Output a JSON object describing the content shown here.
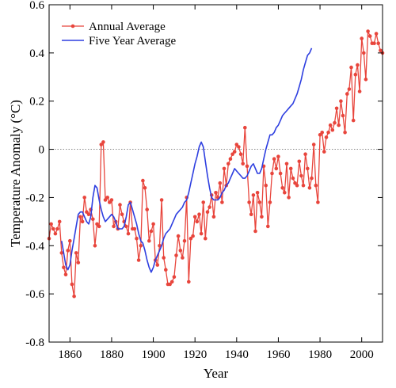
{
  "chart_data": {
    "type": "line",
    "xlabel": "Year",
    "ylabel": "Temperature Anomaly (°C)",
    "xlim": [
      1850,
      2010
    ],
    "ylim": [
      -0.8,
      0.6
    ],
    "x_ticks": [
      1860,
      1880,
      1900,
      1920,
      1940,
      1960,
      1980,
      2000
    ],
    "y_ticks": [
      -0.8,
      -0.6,
      -0.4,
      -0.2,
      0,
      0.2,
      0.4,
      0.6
    ],
    "y_tick_labels": [
      "-0.8",
      "-0.6",
      "-0.4",
      "-0.2",
      "0",
      "0.2",
      "0.4",
      "0.6"
    ],
    "reference_line": {
      "y": 0,
      "style": "dotted"
    },
    "legend_position": "top-left",
    "series": [
      {
        "name": "Annual Average",
        "color": "#e8453c",
        "marker": "circle",
        "x_start": 1850,
        "values": [
          -0.37,
          -0.31,
          -0.33,
          -0.35,
          -0.33,
          -0.3,
          -0.43,
          -0.49,
          -0.52,
          -0.42,
          -0.38,
          -0.56,
          -0.61,
          -0.43,
          -0.47,
          -0.28,
          -0.3,
          -0.2,
          -0.26,
          -0.27,
          -0.25,
          -0.29,
          -0.4,
          -0.31,
          -0.32,
          0.02,
          0.03,
          -0.21,
          -0.2,
          -0.22,
          -0.21,
          -0.32,
          -0.3,
          -0.33,
          -0.23,
          -0.27,
          -0.3,
          -0.32,
          -0.35,
          -0.22,
          -0.33,
          -0.33,
          -0.37,
          -0.46,
          -0.4,
          -0.13,
          -0.16,
          -0.25,
          -0.38,
          -0.34,
          -0.31,
          -0.46,
          -0.48,
          -0.4,
          -0.21,
          -0.45,
          -0.5,
          -0.56,
          -0.56,
          -0.55,
          -0.53,
          -0.44,
          -0.36,
          -0.42,
          -0.45,
          -0.38,
          -0.2,
          -0.55,
          -0.37,
          -0.36,
          -0.28,
          -0.3,
          -0.27,
          -0.35,
          -0.22,
          -0.37,
          -0.26,
          -0.24,
          -0.19,
          -0.28,
          -0.18,
          -0.2,
          -0.14,
          -0.22,
          -0.08,
          -0.15,
          -0.06,
          -0.04,
          -0.02,
          -0.01,
          0.02,
          0.01,
          -0.02,
          -0.06,
          0.09,
          -0.07,
          -0.22,
          -0.27,
          -0.19,
          -0.34,
          -0.18,
          -0.22,
          -0.28,
          -0.07,
          -0.15,
          -0.32,
          -0.22,
          -0.1,
          -0.04,
          -0.08,
          -0.03,
          -0.1,
          -0.16,
          -0.18,
          -0.06,
          -0.2,
          -0.08,
          -0.12,
          -0.14,
          -0.15,
          -0.05,
          -0.11,
          -0.15,
          -0.02,
          -0.08,
          -0.16,
          -0.12,
          0.02,
          -0.15,
          -0.22,
          0.06,
          0.07,
          -0.01,
          0.05,
          0.07,
          0.1,
          0.08,
          0.11,
          0.17,
          0.1,
          0.2,
          0.14,
          0.07,
          0.23,
          0.25,
          0.34,
          0.12,
          0.31,
          0.35,
          0.24,
          0.46,
          0.4,
          0.29,
          0.49,
          0.47,
          0.44,
          0.44,
          0.48,
          0.44,
          0.41,
          0.4
        ]
      },
      {
        "name": "Five Year Average",
        "color": "#2e3fe0",
        "x_start": 1856,
        "values": [
          -0.38,
          -0.43,
          -0.48,
          -0.5,
          -0.48,
          -0.42,
          -0.37,
          -0.32,
          -0.27,
          -0.26,
          -0.26,
          -0.28,
          -0.3,
          -0.31,
          -0.28,
          -0.2,
          -0.15,
          -0.16,
          -0.21,
          -0.25,
          -0.28,
          -0.3,
          -0.29,
          -0.28,
          -0.27,
          -0.28,
          -0.3,
          -0.33,
          -0.33,
          -0.33,
          -0.32,
          -0.28,
          -0.23,
          -0.22,
          -0.25,
          -0.28,
          -0.31,
          -0.35,
          -0.38,
          -0.39,
          -0.42,
          -0.46,
          -0.49,
          -0.51,
          -0.49,
          -0.46,
          -0.44,
          -0.42,
          -0.4,
          -0.37,
          -0.35,
          -0.34,
          -0.33,
          -0.31,
          -0.29,
          -0.27,
          -0.26,
          -0.25,
          -0.24,
          -0.22,
          -0.21,
          -0.18,
          -0.14,
          -0.1,
          -0.06,
          -0.03,
          0.01,
          0.03,
          0.01,
          -0.05,
          -0.11,
          -0.16,
          -0.2,
          -0.21,
          -0.21,
          -0.21,
          -0.2,
          -0.18,
          -0.17,
          -0.15,
          -0.14,
          -0.12,
          -0.1,
          -0.08,
          -0.09,
          -0.1,
          -0.11,
          -0.12,
          -0.12,
          -0.11,
          -0.09,
          -0.07,
          -0.06,
          -0.08,
          -0.1,
          -0.1,
          -0.08,
          -0.04,
          0.0,
          0.03,
          0.06,
          0.06,
          0.07,
          0.09,
          0.1,
          0.12,
          0.14,
          0.15,
          0.16,
          0.17,
          0.18,
          0.19,
          0.21,
          0.23,
          0.26,
          0.29,
          0.33,
          0.36,
          0.39,
          0.4,
          0.42
        ]
      }
    ]
  }
}
